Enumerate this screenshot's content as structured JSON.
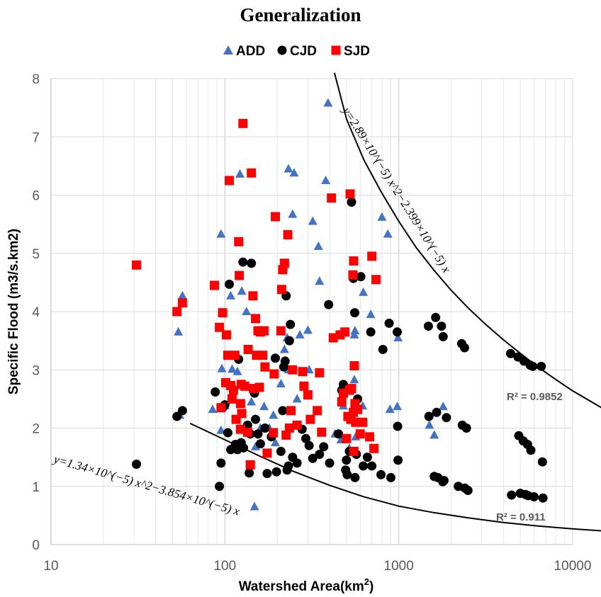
{
  "chart_data": {
    "type": "scatter",
    "title": "Generalization",
    "xlabel": "Watershed Area(km",
    "xlabel_sup": "2",
    "xlabel_close": ")",
    "ylabel": "Specific Flood (m3/s.km2)",
    "xscale": "log",
    "xlim": [
      10,
      10000
    ],
    "ylim": [
      0,
      8
    ],
    "xticks": [
      "10",
      "100",
      "1000",
      "10000"
    ],
    "yticks": [
      "0",
      "1",
      "2",
      "3",
      "4",
      "5",
      "6",
      "7",
      "8"
    ],
    "grid": "major and minor vertical, major horizontal",
    "legend_position": "top",
    "colors": {
      "ADD": "#4472C4",
      "CJD": "#000000",
      "SJD": "#FF0000",
      "curve": "#000000"
    },
    "series": [
      {
        "name": "ADD",
        "marker": "triangle",
        "points": [
          [
            54,
            3.65
          ],
          [
            57,
            4.27
          ],
          [
            55,
            2.22
          ],
          [
            85,
            2.32
          ],
          [
            95,
            5.33
          ],
          [
            96,
            3.02
          ],
          [
            95,
            1.96
          ],
          [
            100,
            2.38
          ],
          [
            108,
            4.27
          ],
          [
            110,
            3.01
          ],
          [
            118,
            2.97
          ],
          [
            122,
            6.36
          ],
          [
            125,
            4.35
          ],
          [
            133,
            4.0
          ],
          [
            128,
            2.73
          ],
          [
            142,
            2.45
          ],
          [
            150,
            1.68
          ],
          [
            148,
            0.65
          ],
          [
            160,
            2.0
          ],
          [
            168,
            2.37
          ],
          [
            180,
            2.0
          ],
          [
            190,
            2.22
          ],
          [
            195,
            1.75
          ],
          [
            210,
            2.76
          ],
          [
            220,
            3.35
          ],
          [
            228,
            3.55
          ],
          [
            232,
            6.45
          ],
          [
            232,
            3.0
          ],
          [
            245,
            5.67
          ],
          [
            250,
            6.38
          ],
          [
            260,
            2.5
          ],
          [
            270,
            3.6
          ],
          [
            300,
            3.68
          ],
          [
            305,
            3.0
          ],
          [
            320,
            5.55
          ],
          [
            345,
            5.12
          ],
          [
            350,
            4.52
          ],
          [
            380,
            6.25
          ],
          [
            392,
            7.58
          ],
          [
            430,
            1.9
          ],
          [
            465,
            1.8
          ],
          [
            480,
            2.38
          ],
          [
            520,
            1.65
          ],
          [
            555,
            3.6
          ],
          [
            555,
            2.83
          ],
          [
            565,
            1.85
          ],
          [
            560,
            3.67
          ],
          [
            620,
            2.38
          ],
          [
            625,
            4.33
          ],
          [
            690,
            3.95
          ],
          [
            800,
            5.62
          ],
          [
            865,
            5.33
          ],
          [
            890,
            2.32
          ],
          [
            980,
            2.37
          ],
          [
            990,
            3.55
          ],
          [
            1500,
            2.05
          ],
          [
            1600,
            1.88
          ],
          [
            1800,
            2.37
          ]
        ]
      },
      {
        "name": "CJD",
        "marker": "circle",
        "points": [
          [
            31,
            1.38
          ],
          [
            53,
            2.2
          ],
          [
            57,
            2.3
          ],
          [
            88,
            2.62
          ],
          [
            93,
            1.0
          ],
          [
            95,
            1.4
          ],
          [
            97,
            2.35
          ],
          [
            100,
            2.4
          ],
          [
            104,
            1.92
          ],
          [
            106,
            4.47
          ],
          [
            108,
            1.63
          ],
          [
            115,
            1.72
          ],
          [
            118,
            1.63
          ],
          [
            120,
            3.18
          ],
          [
            124,
            1.75
          ],
          [
            127,
            4.85
          ],
          [
            128,
            1.66
          ],
          [
            135,
            2.05
          ],
          [
            138,
            1.23
          ],
          [
            140,
            1.9
          ],
          [
            142,
            4.83
          ],
          [
            148,
            2.6
          ],
          [
            150,
            2.15
          ],
          [
            155,
            1.9
          ],
          [
            160,
            1.73
          ],
          [
            170,
            2.0
          ],
          [
            175,
            1.22
          ],
          [
            185,
            1.85
          ],
          [
            195,
            3.2
          ],
          [
            198,
            1.25
          ],
          [
            210,
            1.6
          ],
          [
            215,
            2.3
          ],
          [
            218,
            3.05
          ],
          [
            222,
            3.15
          ],
          [
            225,
            4.27
          ],
          [
            228,
            1.28
          ],
          [
            232,
            1.35
          ],
          [
            235,
            3.5
          ],
          [
            238,
            3.78
          ],
          [
            245,
            1.5
          ],
          [
            260,
            1.4
          ],
          [
            278,
            1.98
          ],
          [
            292,
            1.82
          ],
          [
            305,
            1.7
          ],
          [
            320,
            1.48
          ],
          [
            350,
            1.55
          ],
          [
            370,
            1.68
          ],
          [
            395,
            4.12
          ],
          [
            400,
            1.4
          ],
          [
            450,
            1.9
          ],
          [
            470,
            2.65
          ],
          [
            480,
            2.75
          ],
          [
            495,
            1.28
          ],
          [
            500,
            1.45
          ],
          [
            505,
            1.2
          ],
          [
            520,
            1.6
          ],
          [
            535,
            5.88
          ],
          [
            548,
            4.57
          ],
          [
            558,
            3.98
          ],
          [
            560,
            1.15
          ],
          [
            570,
            1.55
          ],
          [
            580,
            2.5
          ],
          [
            605,
            4.6
          ],
          [
            625,
            1.35
          ],
          [
            660,
            1.5
          ],
          [
            690,
            3.65
          ],
          [
            700,
            1.35
          ],
          [
            790,
            1.2
          ],
          [
            810,
            3.35
          ],
          [
            880,
            3.8
          ],
          [
            900,
            1.15
          ],
          [
            980,
            3.65
          ],
          [
            985,
            2.03
          ],
          [
            990,
            1.45
          ],
          [
            1480,
            3.75
          ],
          [
            1490,
            2.2
          ],
          [
            1600,
            1.17
          ],
          [
            1630,
            3.9
          ],
          [
            1650,
            2.27
          ],
          [
            1680,
            1.15
          ],
          [
            1760,
            3.75
          ],
          [
            1790,
            1.08
          ],
          [
            1800,
            3.57
          ],
          [
            1820,
            1.1
          ],
          [
            1880,
            2.18
          ],
          [
            2200,
            1.0
          ],
          [
            2320,
            2.05
          ],
          [
            2300,
            3.45
          ],
          [
            2390,
            3.38
          ],
          [
            2400,
            0.97
          ],
          [
            2450,
            2.0
          ],
          [
            2500,
            0.93
          ],
          [
            4400,
            3.28
          ],
          [
            4450,
            0.85
          ],
          [
            4850,
            3.22
          ],
          [
            4900,
            1.87
          ],
          [
            5000,
            0.88
          ],
          [
            5200,
            1.78
          ],
          [
            5250,
            3.15
          ],
          [
            5350,
            0.86
          ],
          [
            5500,
            1.72
          ],
          [
            5550,
            0.84
          ],
          [
            5700,
            3.08
          ],
          [
            5750,
            1.62
          ],
          [
            5900,
            3.06
          ],
          [
            6000,
            0.82
          ],
          [
            6600,
            3.06
          ],
          [
            6700,
            1.42
          ],
          [
            6750,
            0.8
          ]
        ]
      },
      {
        "name": "SJD",
        "marker": "square",
        "points": [
          [
            31,
            4.8
          ],
          [
            53,
            4.0
          ],
          [
            57,
            4.15
          ],
          [
            87,
            4.45
          ],
          [
            93,
            3.73
          ],
          [
            95,
            2.35
          ],
          [
            97,
            3.98
          ],
          [
            101,
            2.78
          ],
          [
            102,
            3.6
          ],
          [
            104,
            3.25
          ],
          [
            106,
            6.25
          ],
          [
            108,
            2.73
          ],
          [
            110,
            2.5
          ],
          [
            112,
            2.65
          ],
          [
            114,
            3.25
          ],
          [
            116,
            2.15
          ],
          [
            120,
            5.2
          ],
          [
            121,
            4.62
          ],
          [
            123,
            1.98
          ],
          [
            123,
            2.42
          ],
          [
            124,
            2.75
          ],
          [
            125,
            2.25
          ],
          [
            127,
            7.23
          ],
          [
            130,
            2.72
          ],
          [
            135,
            1.93
          ],
          [
            136,
            3.35
          ],
          [
            140,
            1.37
          ],
          [
            142,
            6.38
          ],
          [
            145,
            4.27
          ],
          [
            146,
            2.68
          ],
          [
            150,
            3.88
          ],
          [
            152,
            3.25
          ],
          [
            155,
            3.67
          ],
          [
            158,
            2.7
          ],
          [
            160,
            3.65
          ],
          [
            165,
            3.25
          ],
          [
            168,
            3.67
          ],
          [
            170,
            3.05
          ],
          [
            175,
            1.57
          ],
          [
            190,
            1.92
          ],
          [
            192,
            2.93
          ],
          [
            195,
            5.63
          ],
          [
            210,
            3.67
          ],
          [
            212,
            4.38
          ],
          [
            215,
            4.72
          ],
          [
            220,
            4.83
          ],
          [
            225,
            1.88
          ],
          [
            230,
            5.32
          ],
          [
            235,
            2.0
          ],
          [
            240,
            2.3
          ],
          [
            245,
            3.0
          ],
          [
            260,
            2.05
          ],
          [
            280,
            2.97
          ],
          [
            285,
            2.72
          ],
          [
            300,
            2.57
          ],
          [
            310,
            2.15
          ],
          [
            340,
            2.3
          ],
          [
            350,
            2.95
          ],
          [
            360,
            1.93
          ],
          [
            410,
            5.95
          ],
          [
            420,
            3.55
          ],
          [
            460,
            3.6
          ],
          [
            470,
            2.45
          ],
          [
            480,
            2.6
          ],
          [
            490,
            3.65
          ],
          [
            500,
            1.82
          ],
          [
            510,
            2.2
          ],
          [
            520,
            2.65
          ],
          [
            525,
            6.02
          ],
          [
            530,
            2.15
          ],
          [
            535,
            2.68
          ],
          [
            545,
            4.63
          ],
          [
            548,
            2.27
          ],
          [
            550,
            4.87
          ],
          [
            552,
            1.6
          ],
          [
            555,
            3.07
          ],
          [
            560,
            2.42
          ],
          [
            565,
            2.1
          ],
          [
            580,
            2.32
          ],
          [
            600,
            1.9
          ],
          [
            620,
            2.1
          ],
          [
            680,
            1.85
          ],
          [
            700,
            4.95
          ],
          [
            720,
            1.65
          ],
          [
            740,
            4.55
          ]
        ]
      }
    ],
    "trendlines": [
      {
        "label": "y=2.89×10^(−5) x^2−2.399×10^(−5) x",
        "r2_text": "R² = 0.9852",
        "shape": "upper envelope curve"
      },
      {
        "label": "y=1.34×10^(−5) x^2−3.854×10^(−5) x",
        "r2_text": "R² = 0.911",
        "shape": "lower envelope curve"
      }
    ]
  }
}
